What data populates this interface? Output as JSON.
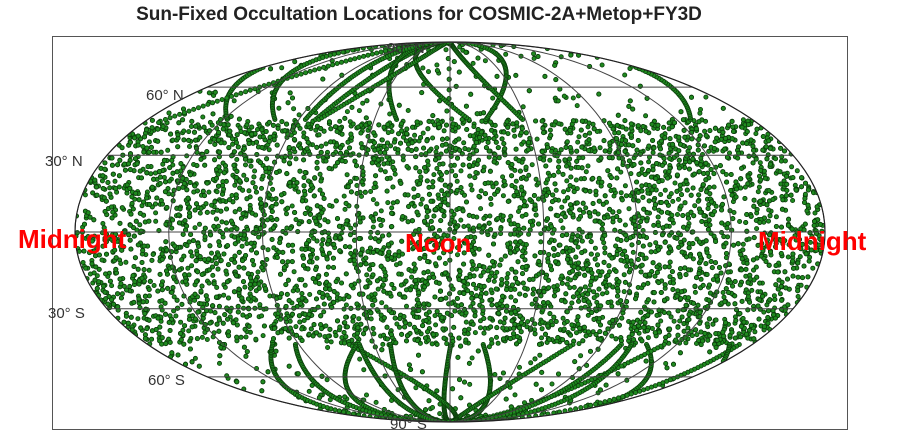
{
  "title": "Sun-Fixed Occultation Locations for COSMIC-2A+Metop+FY3D",
  "latitude_labels": [
    "90° N",
    "60° N",
    "30° N",
    "30° S",
    "60° S",
    "90° S"
  ],
  "overlay_labels": {
    "left": "Midnight",
    "center": "Noon",
    "right": "Midnight"
  },
  "colors": {
    "points_fill": "#1f8a1f",
    "points_stroke": "#0b3d0b",
    "overlay_text": "#ff0000",
    "graticule": "#444444"
  },
  "map": {
    "projection": "mollweide",
    "meridians_deg": [
      -180,
      -135,
      -90,
      -45,
      0,
      45,
      90,
      135,
      180
    ],
    "parallels_deg": [
      -60,
      -30,
      0,
      30,
      60
    ]
  }
}
